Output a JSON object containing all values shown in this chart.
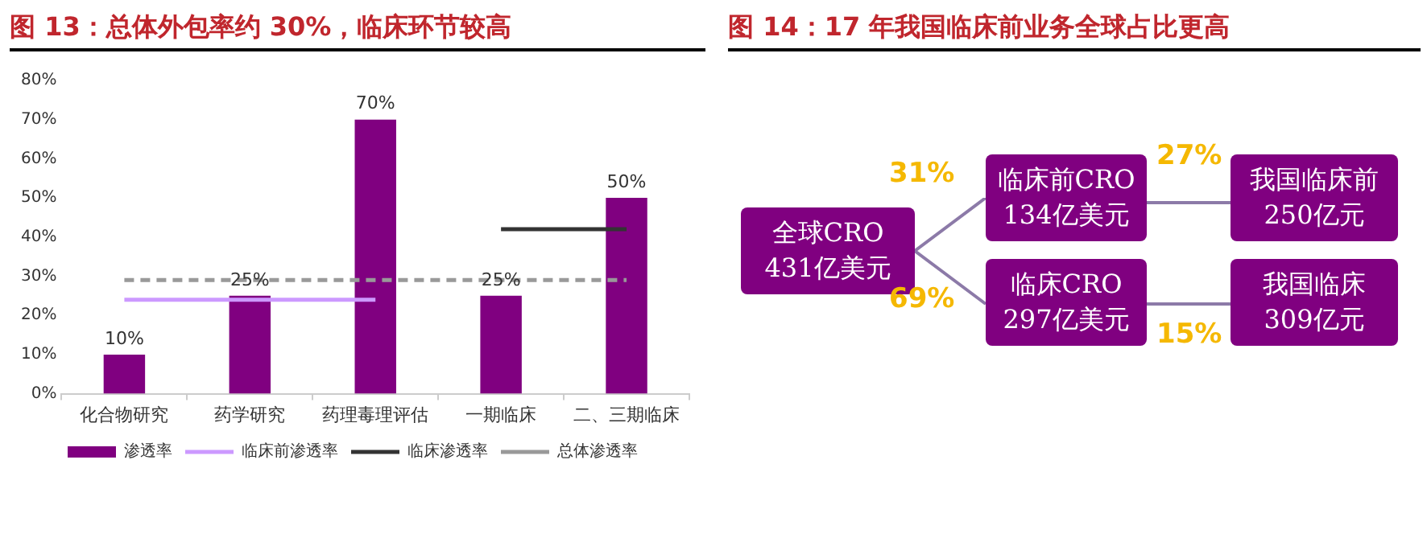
{
  "chart_data": [
    {
      "type": "bar",
      "title": "图 13：总体外包率约 30%，临床环节较高",
      "categories": [
        "化合物研究",
        "药学研究",
        "药理毒理评估",
        "一期临床",
        "二、三期临床"
      ],
      "series": [
        {
          "name": "渗透率",
          "type": "bar",
          "color": "#800080",
          "values": [
            10,
            25,
            70,
            25,
            50
          ],
          "value_labels": [
            "10%",
            "25%",
            "70%",
            "25%",
            "50%"
          ]
        },
        {
          "name": "临床前渗透率",
          "type": "line",
          "color": "#cc99ff",
          "line_style": "solid",
          "values": [
            24,
            24,
            24,
            null,
            null
          ]
        },
        {
          "name": "临床渗透率",
          "type": "line",
          "color": "#333333",
          "line_style": "solid",
          "values": [
            null,
            null,
            null,
            42,
            42
          ]
        },
        {
          "name": "总体渗透率",
          "type": "line",
          "color": "#999999",
          "line_style": "dashed",
          "values": [
            29,
            29,
            29,
            29,
            29
          ]
        }
      ],
      "marker": "none",
      "ylim": [
        0,
        80
      ],
      "yticks": [
        {
          "value": 0,
          "label": "0%"
        },
        {
          "value": 10,
          "label": "10%"
        },
        {
          "value": 20,
          "label": "20%"
        },
        {
          "value": 30,
          "label": "30%"
        },
        {
          "value": 40,
          "label": "40%"
        },
        {
          "value": 50,
          "label": "50%"
        },
        {
          "value": 60,
          "label": "60%"
        },
        {
          "value": 70,
          "label": "70%"
        },
        {
          "value": 80,
          "label": "80%"
        }
      ],
      "grid": false,
      "legend": "bottom"
    },
    {
      "type": "other",
      "title": "图 14：17 年我国临床前业务全球占比更高",
      "annotations": [
        "全球CRO\n431亿美元",
        "临床前CRO\n134亿美元",
        "临床CRO\n297亿美元",
        "我国临床前\n250亿元",
        "我国临床\n309亿元",
        "31%",
        "69%",
        "27%",
        "15%"
      ]
    }
  ]
}
